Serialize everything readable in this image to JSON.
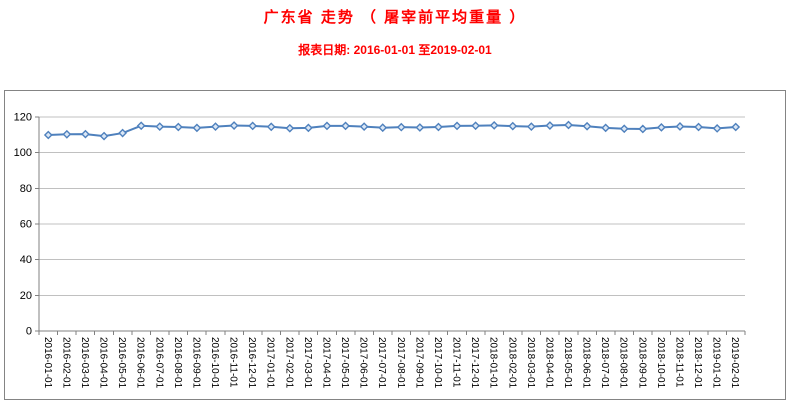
{
  "title": "广东省 走势 （ 屠宰前平均重量 ）",
  "subtitle": "报表日期: 2016-01-01 至2019-02-01",
  "colors": {
    "title": "#ff0000",
    "subtitle": "#ff0000",
    "line": "#4f81bd",
    "marker_fill": "#dbe7f5",
    "gridline": "#c0c0c0",
    "axis": "#808080",
    "chart_border": "#848484",
    "tick_label": "#000000"
  },
  "chart_data": {
    "type": "line",
    "title": "广东省 走势 （ 屠宰前平均重量 ）",
    "x": [
      "2016-01-01",
      "2016-02-01",
      "2016-03-01",
      "2016-04-01",
      "2016-05-01",
      "2016-06-01",
      "2016-07-01",
      "2016-08-01",
      "2016-09-01",
      "2016-10-01",
      "2016-11-01",
      "2016-12-01",
      "2017-01-01",
      "2017-02-01",
      "2017-03-01",
      "2017-04-01",
      "2017-05-01",
      "2017-06-01",
      "2017-07-01",
      "2017-08-01",
      "2017-09-01",
      "2017-10-01",
      "2017-11-01",
      "2017-12-01",
      "2018-01-01",
      "2018-02-01",
      "2018-03-01",
      "2018-04-01",
      "2018-05-01",
      "2018-06-01",
      "2018-07-01",
      "2018-08-01",
      "2018-09-01",
      "2018-10-01",
      "2018-11-01",
      "2018-12-01",
      "2019-01-01",
      "2019-02-01"
    ],
    "series": [
      {
        "name": "屠宰前平均重量",
        "values": [
          109.9,
          110.3,
          110.4,
          109.3,
          111.0,
          115.1,
          114.6,
          114.4,
          113.9,
          114.6,
          115.2,
          115.0,
          114.5,
          113.7,
          113.9,
          115.0,
          115.0,
          114.6,
          114.0,
          114.3,
          114.1,
          114.4,
          115.0,
          115.1,
          115.3,
          114.9,
          114.6,
          115.2,
          115.5,
          114.8,
          113.9,
          113.4,
          113.3,
          114.2,
          114.7,
          114.4,
          113.6,
          114.4
        ]
      }
    ],
    "ylim": [
      0,
      120
    ],
    "yticks": [
      0,
      20,
      40,
      60,
      80,
      100,
      120
    ],
    "xlabel": "",
    "ylabel": "",
    "grid": "horizontal",
    "legend": "none",
    "marker": "diamond"
  }
}
